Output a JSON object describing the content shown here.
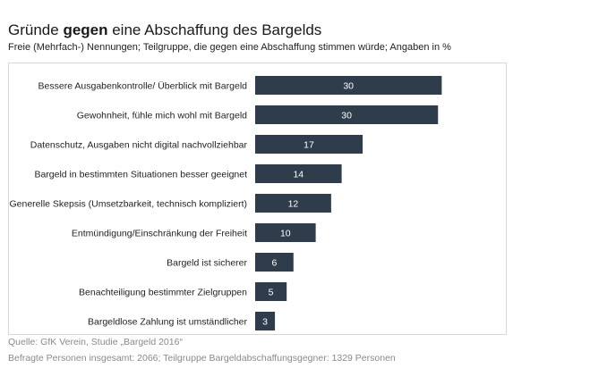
{
  "chart_data": {
    "type": "bar",
    "orientation": "horizontal",
    "title_pre": "Gründe ",
    "title_bold": "gegen",
    "title_post": " eine Abschaffung des Bargelds",
    "title": "Gründe gegen eine Abschaffung des Bargelds",
    "subtitle": "Freie (Mehrfach-) Nennungen; Teilgruppe, die gegen eine Abschaffung stimmen würde; Angaben in %",
    "categories": [
      "Bessere Ausgabenkontrolle/ Überblick mit Bargeld",
      "Gewohnheit, fühle mich wohl mit Bargeld",
      "Datenschutz, Ausgaben nicht digital nachvollziehbar",
      "Bargeld in bestimmten Situationen besser geeignet",
      "Generelle Skepsis (Umsetzbarkeit, technisch kompliziert)",
      "Entmündigung/Einschränkung der Freiheit",
      "Bargeld ist sicherer",
      "Benachteiligung bestimmter Zielgruppen",
      "Bargeldlose Zahlung ist umständlicher"
    ],
    "values": [
      30.2,
      29.6,
      17.4,
      14.0,
      12.3,
      9.8,
      6.2,
      5.1,
      3.2
    ],
    "value_labels": [
      "30",
      "30",
      "17",
      "14",
      "12",
      "10",
      "6",
      "5",
      "3"
    ],
    "xlabel": "",
    "ylabel": "",
    "xlim": [
      0,
      40
    ],
    "grid": false,
    "legend": "none",
    "bar_color": "#2e3c4c",
    "label_color": "#ffffff"
  },
  "footer": {
    "source": "Quelle: GfK Verein, Studie „Bargeld 2016“",
    "note": "Befragte Personen insgesamt: 2066; Teilgruppe Bargeldabschaffungsgegner: 1329 Personen"
  }
}
